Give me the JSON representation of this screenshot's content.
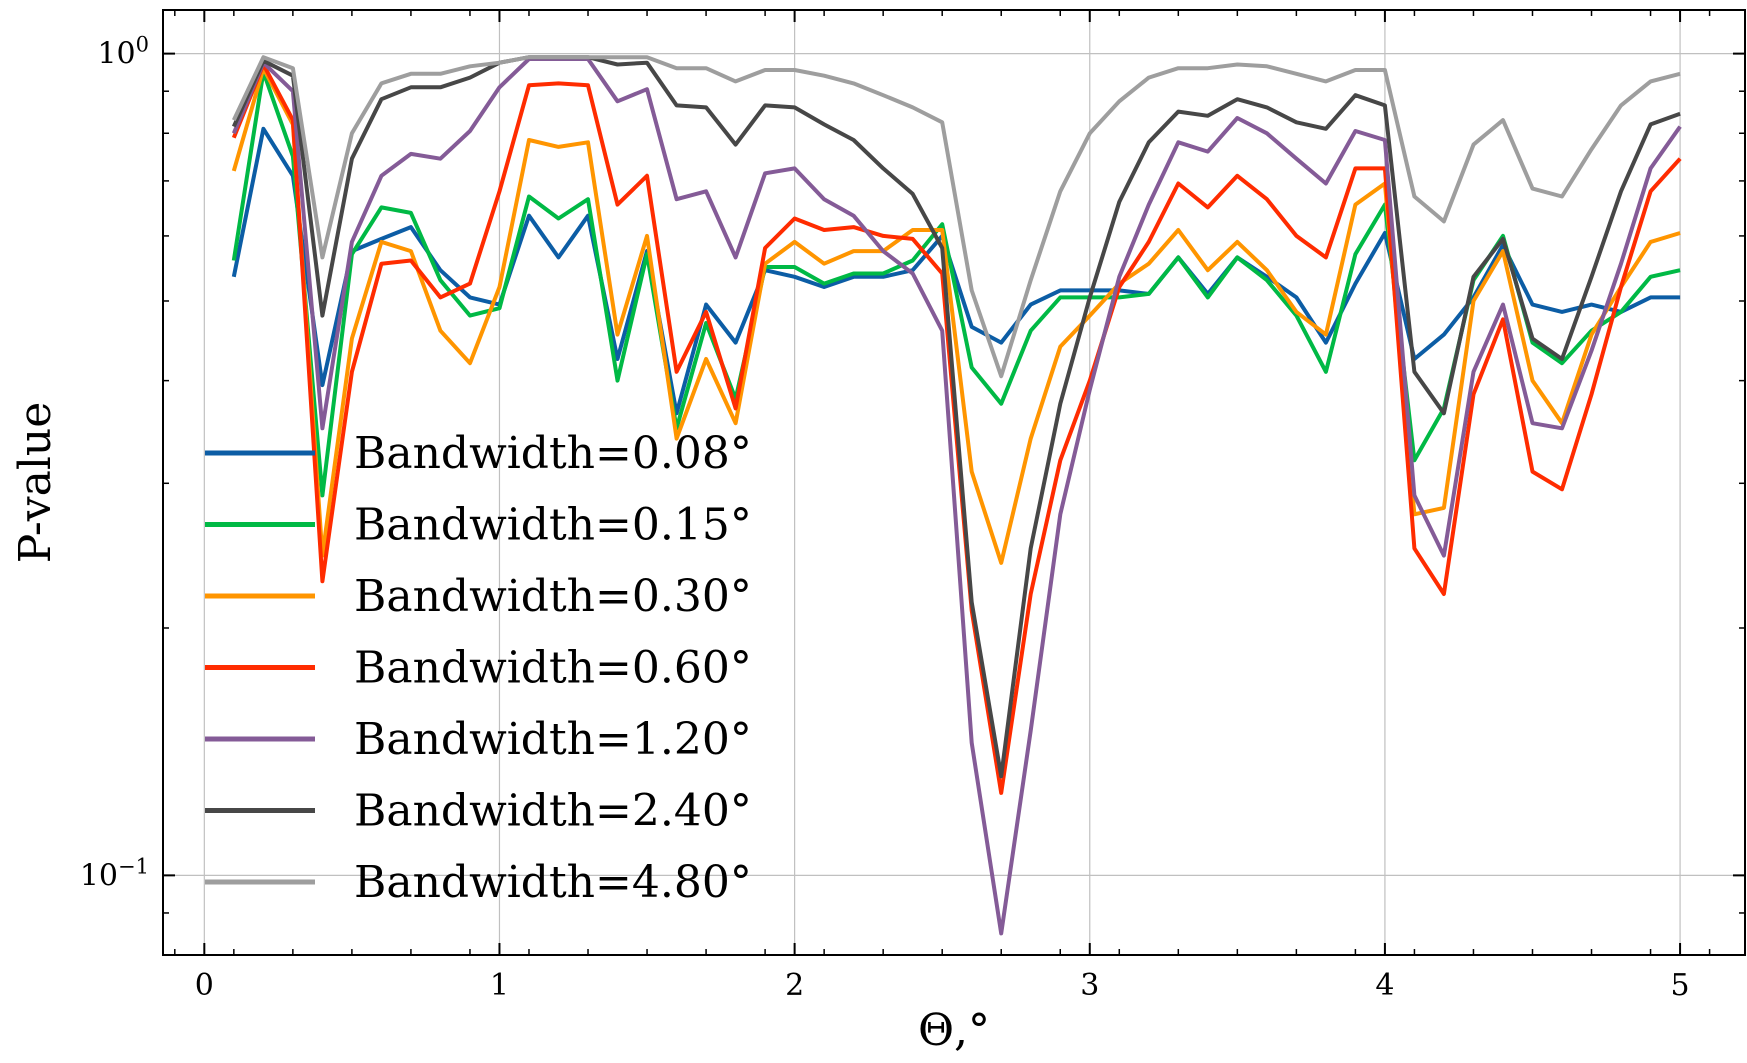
{
  "chart_data": {
    "type": "line",
    "xlabel": "Θ,°",
    "ylabel": "P-value",
    "yscale": "log",
    "xlim": [
      -0.14,
      5.22
    ],
    "ylim": [
      0.08,
      1.13
    ],
    "grid": true,
    "legend_position": "lower-left",
    "x_ticks": [
      0,
      1,
      2,
      3,
      4,
      5
    ],
    "x_tick_labels": [
      "0",
      "1",
      "2",
      "3",
      "4",
      "5"
    ],
    "y_ticks": [
      0.1,
      1.0
    ],
    "y_tick_labels": [
      {
        "base": "10",
        "exp": "−1"
      },
      {
        "base": "10",
        "exp": "0"
      }
    ],
    "x": [
      0.1,
      0.2,
      0.3,
      0.4,
      0.5,
      0.6,
      0.7,
      0.8,
      0.9,
      1.0,
      1.1,
      1.2,
      1.3,
      1.4,
      1.5,
      1.6,
      1.7,
      1.8,
      1.9,
      2.0,
      2.1,
      2.2,
      2.3,
      2.4,
      2.5,
      2.6,
      2.7,
      2.8,
      2.9,
      3.0,
      3.1,
      3.2,
      3.3,
      3.4,
      3.5,
      3.6,
      3.7,
      3.8,
      3.9,
      4.0,
      4.1,
      4.2,
      4.3,
      4.4,
      4.5,
      4.6,
      4.7,
      4.8,
      4.9,
      5.0
    ],
    "series": [
      {
        "name": "Bandwidth=0.08°",
        "color": "#0C5DA5",
        "values": [
          0.535,
          0.81,
          0.71,
          0.395,
          0.575,
          0.595,
          0.615,
          0.545,
          0.505,
          0.495,
          0.635,
          0.565,
          0.635,
          0.425,
          0.575,
          0.365,
          0.495,
          0.445,
          0.545,
          0.535,
          0.52,
          0.535,
          0.535,
          0.545,
          0.6,
          0.465,
          0.445,
          0.495,
          0.515,
          0.515,
          0.515,
          0.51,
          0.565,
          0.51,
          0.565,
          0.535,
          0.505,
          0.445,
          0.525,
          0.605,
          0.425,
          0.455,
          0.505,
          0.585,
          0.495,
          0.485,
          0.495,
          0.485,
          0.505,
          0.505
        ]
      },
      {
        "name": "Bandwidth=0.15°",
        "color": "#00B945",
        "values": [
          0.56,
          0.95,
          0.75,
          0.29,
          0.57,
          0.65,
          0.64,
          0.53,
          0.48,
          0.49,
          0.67,
          0.63,
          0.665,
          0.4,
          0.57,
          0.35,
          0.47,
          0.38,
          0.55,
          0.55,
          0.525,
          0.54,
          0.54,
          0.56,
          0.62,
          0.415,
          0.375,
          0.46,
          0.505,
          0.505,
          0.505,
          0.51,
          0.565,
          0.505,
          0.565,
          0.53,
          0.48,
          0.41,
          0.57,
          0.655,
          0.32,
          0.37,
          0.53,
          0.6,
          0.445,
          0.42,
          0.46,
          0.485,
          0.535,
          0.545
        ]
      },
      {
        "name": "Bandwidth=0.30°",
        "color": "#FF9500",
        "values": [
          0.72,
          0.96,
          0.82,
          0.245,
          0.45,
          0.59,
          0.575,
          0.46,
          0.42,
          0.52,
          0.785,
          0.77,
          0.78,
          0.455,
          0.6,
          0.34,
          0.425,
          0.355,
          0.555,
          0.59,
          0.555,
          0.575,
          0.575,
          0.61,
          0.61,
          0.31,
          0.24,
          0.34,
          0.44,
          0.48,
          0.525,
          0.555,
          0.61,
          0.545,
          0.59,
          0.545,
          0.485,
          0.455,
          0.655,
          0.695,
          0.275,
          0.28,
          0.5,
          0.575,
          0.4,
          0.355,
          0.455,
          0.52,
          0.59,
          0.605
        ]
      },
      {
        "name": "Bandwidth=0.60°",
        "color": "#FF2C00",
        "values": [
          0.79,
          0.97,
          0.83,
          0.228,
          0.41,
          0.555,
          0.56,
          0.505,
          0.525,
          0.68,
          0.915,
          0.92,
          0.915,
          0.655,
          0.71,
          0.41,
          0.485,
          0.37,
          0.58,
          0.63,
          0.61,
          0.615,
          0.6,
          0.595,
          0.54,
          0.21,
          0.126,
          0.22,
          0.32,
          0.4,
          0.52,
          0.59,
          0.695,
          0.65,
          0.71,
          0.665,
          0.6,
          0.565,
          0.725,
          0.725,
          0.25,
          0.22,
          0.385,
          0.475,
          0.31,
          0.295,
          0.385,
          0.52,
          0.68,
          0.745
        ]
      },
      {
        "name": "Bandwidth=1.20°",
        "color": "#845B97",
        "values": [
          0.8,
          0.975,
          0.9,
          0.35,
          0.59,
          0.71,
          0.755,
          0.745,
          0.805,
          0.91,
          0.985,
          0.985,
          0.985,
          0.875,
          0.905,
          0.665,
          0.68,
          0.565,
          0.715,
          0.725,
          0.665,
          0.635,
          0.575,
          0.54,
          0.46,
          0.145,
          0.085,
          0.15,
          0.275,
          0.39,
          0.535,
          0.655,
          0.78,
          0.76,
          0.835,
          0.8,
          0.745,
          0.695,
          0.805,
          0.785,
          0.29,
          0.245,
          0.41,
          0.495,
          0.355,
          0.35,
          0.435,
          0.555,
          0.725,
          0.815
        ]
      },
      {
        "name": "Bandwidth=2.40°",
        "color": "#474747",
        "values": [
          0.815,
          0.98,
          0.94,
          0.48,
          0.745,
          0.88,
          0.91,
          0.91,
          0.935,
          0.975,
          0.99,
          0.99,
          0.99,
          0.97,
          0.975,
          0.865,
          0.86,
          0.775,
          0.865,
          0.86,
          0.82,
          0.785,
          0.725,
          0.675,
          0.58,
          0.215,
          0.132,
          0.25,
          0.375,
          0.505,
          0.66,
          0.78,
          0.85,
          0.84,
          0.88,
          0.86,
          0.825,
          0.81,
          0.89,
          0.865,
          0.41,
          0.365,
          0.535,
          0.595,
          0.45,
          0.425,
          0.535,
          0.68,
          0.82,
          0.845
        ]
      },
      {
        "name": "Bandwidth=4.80°",
        "color": "#9E9E9E",
        "values": [
          0.83,
          0.99,
          0.96,
          0.565,
          0.8,
          0.92,
          0.945,
          0.945,
          0.965,
          0.975,
          0.99,
          0.99,
          0.99,
          0.99,
          0.99,
          0.96,
          0.96,
          0.925,
          0.955,
          0.955,
          0.94,
          0.92,
          0.89,
          0.86,
          0.825,
          0.515,
          0.405,
          0.53,
          0.68,
          0.8,
          0.875,
          0.935,
          0.96,
          0.96,
          0.97,
          0.965,
          0.945,
          0.925,
          0.955,
          0.955,
          0.67,
          0.625,
          0.775,
          0.83,
          0.685,
          0.67,
          0.765,
          0.865,
          0.925,
          0.945
        ]
      }
    ]
  }
}
